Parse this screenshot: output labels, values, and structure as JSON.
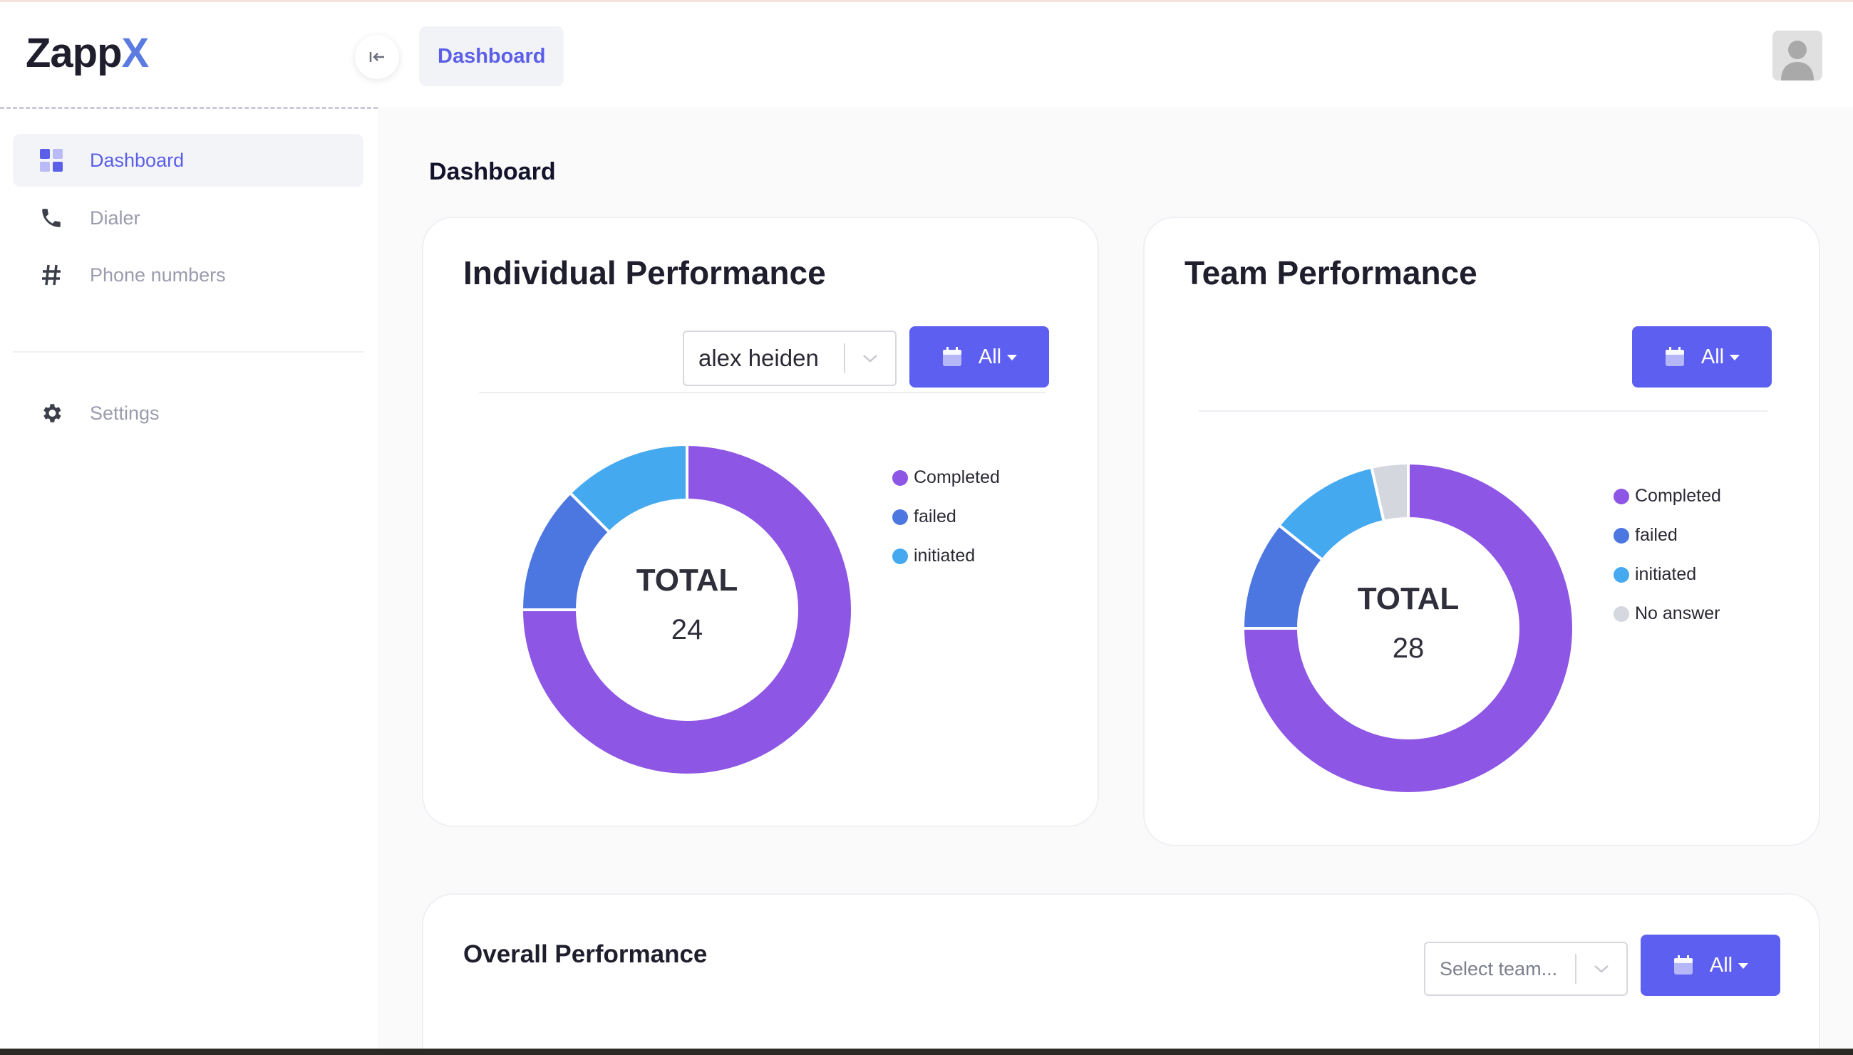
{
  "app": {
    "logo_main": "Zapp",
    "logo_accent": "X"
  },
  "header": {
    "breadcrumb": "Dashboard"
  },
  "sidebar": {
    "items": [
      {
        "label": "Dashboard",
        "icon": "dashboard-grid-icon",
        "active": true
      },
      {
        "label": "Dialer",
        "icon": "phone-icon",
        "active": false
      },
      {
        "label": "Phone numbers",
        "icon": "hash-icon",
        "active": false
      },
      {
        "label": "Settings",
        "icon": "gear-icon",
        "active": false
      }
    ]
  },
  "main": {
    "title": "Dashboard",
    "individual": {
      "title": "Individual Performance",
      "user_select": "alex heiden",
      "date_button": "All",
      "total_label": "TOTAL",
      "total_value": "24",
      "legend": [
        "Completed",
        "failed",
        "initiated"
      ]
    },
    "team": {
      "title": "Team Performance",
      "date_button": "All",
      "total_label": "TOTAL",
      "total_value": "28",
      "legend": [
        "Completed",
        "failed",
        "initiated",
        "No answer"
      ]
    },
    "overall": {
      "title": "Overall Performance",
      "team_select_placeholder": "Select team...",
      "date_button": "All"
    }
  },
  "colors": {
    "accent": "#5d5ff1",
    "completed": "#8e56e4",
    "failed": "#4c77e0",
    "initiated": "#45a9f0",
    "no_answer": "#d4d7de"
  },
  "chart_data": [
    {
      "type": "pie",
      "categories": [
        "Completed",
        "failed",
        "initiated"
      ],
      "values": [
        18,
        3,
        3
      ],
      "total": 24,
      "legend": "right"
    },
    {
      "type": "pie",
      "categories": [
        "Completed",
        "failed",
        "initiated",
        "No answer"
      ],
      "values": [
        21,
        3,
        3,
        1
      ],
      "total": 28,
      "legend": "right"
    }
  ]
}
